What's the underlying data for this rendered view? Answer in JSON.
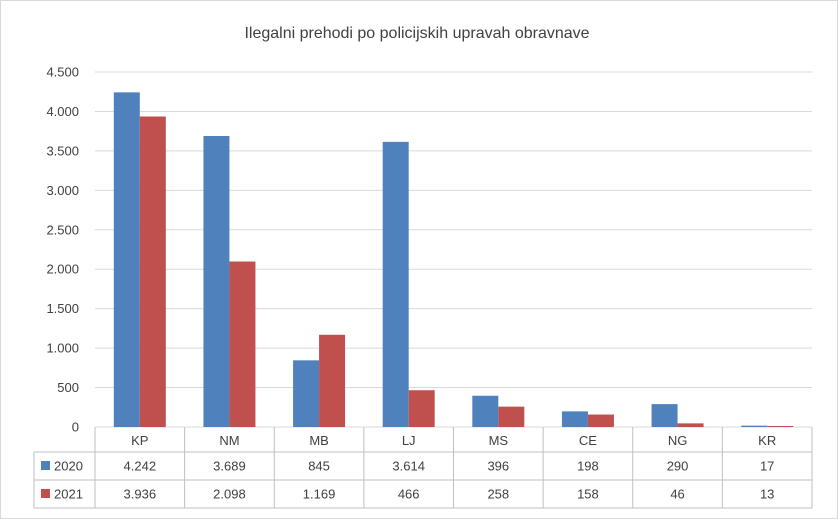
{
  "chart_data": {
    "type": "bar",
    "title": "Ilegalni prehodi po policijskih upravah obravnave",
    "categories": [
      "KP",
      "NM",
      "MB",
      "LJ",
      "MS",
      "CE",
      "NG",
      "KR"
    ],
    "series": [
      {
        "name": "2020",
        "color": "#4f81bd",
        "values": [
          4242,
          3689,
          845,
          3614,
          396,
          198,
          290,
          17
        ],
        "labels": [
          "4.242",
          "3.689",
          "845",
          "3.614",
          "396",
          "198",
          "290",
          "17"
        ]
      },
      {
        "name": "2021",
        "color": "#c0504d",
        "values": [
          3936,
          2098,
          1169,
          466,
          258,
          158,
          46,
          13
        ],
        "labels": [
          "3.936",
          "2.098",
          "1.169",
          "466",
          "258",
          "158",
          "46",
          "13"
        ]
      }
    ],
    "y_ticks": [
      0,
      500,
      1000,
      1500,
      2000,
      2500,
      3000,
      3500,
      4000,
      4500
    ],
    "y_tick_labels": [
      "0",
      "500",
      "1.000",
      "1.500",
      "2.000",
      "2.500",
      "3.000",
      "3.500",
      "4.000",
      "4.500"
    ],
    "ylim": [
      0,
      4500
    ],
    "grid": true,
    "legend": "data-table"
  }
}
